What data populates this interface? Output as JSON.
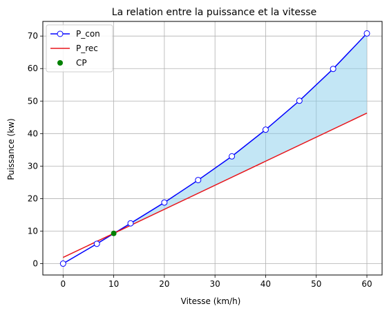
{
  "chart_data": {
    "type": "line",
    "title": "La relation entre la puissance et la vitesse",
    "xlabel": "Vitesse (km/h)",
    "ylabel": "Puissance (kw)",
    "xlim": [
      -4,
      63
    ],
    "ylim": [
      -3.5,
      74.5
    ],
    "xticks": [
      0,
      10,
      20,
      30,
      40,
      50,
      60
    ],
    "yticks": [
      0,
      10,
      20,
      30,
      40,
      50,
      60,
      70
    ],
    "grid": true,
    "legend_position": "top-left",
    "series": [
      {
        "name": "P_con",
        "kind": "line-marker",
        "color": "#0000ff",
        "x": [
          0,
          6.67,
          13.33,
          20,
          26.67,
          33.33,
          40,
          46.67,
          53.33,
          60
        ],
        "y": [
          0,
          6.1,
          12.4,
          18.8,
          25.7,
          33.0,
          41.2,
          50.1,
          59.9,
          70.8
        ]
      },
      {
        "name": "P_rec",
        "kind": "line",
        "color": "#e8151b",
        "x": [
          0,
          60
        ],
        "y": [
          1.9,
          46.3
        ]
      },
      {
        "name": "CP",
        "kind": "point",
        "color": "#008000",
        "x": [
          10
        ],
        "y": [
          9.3
        ]
      }
    ],
    "fill_between": {
      "color": "#87ceeb",
      "opacity": 0.5
    }
  }
}
